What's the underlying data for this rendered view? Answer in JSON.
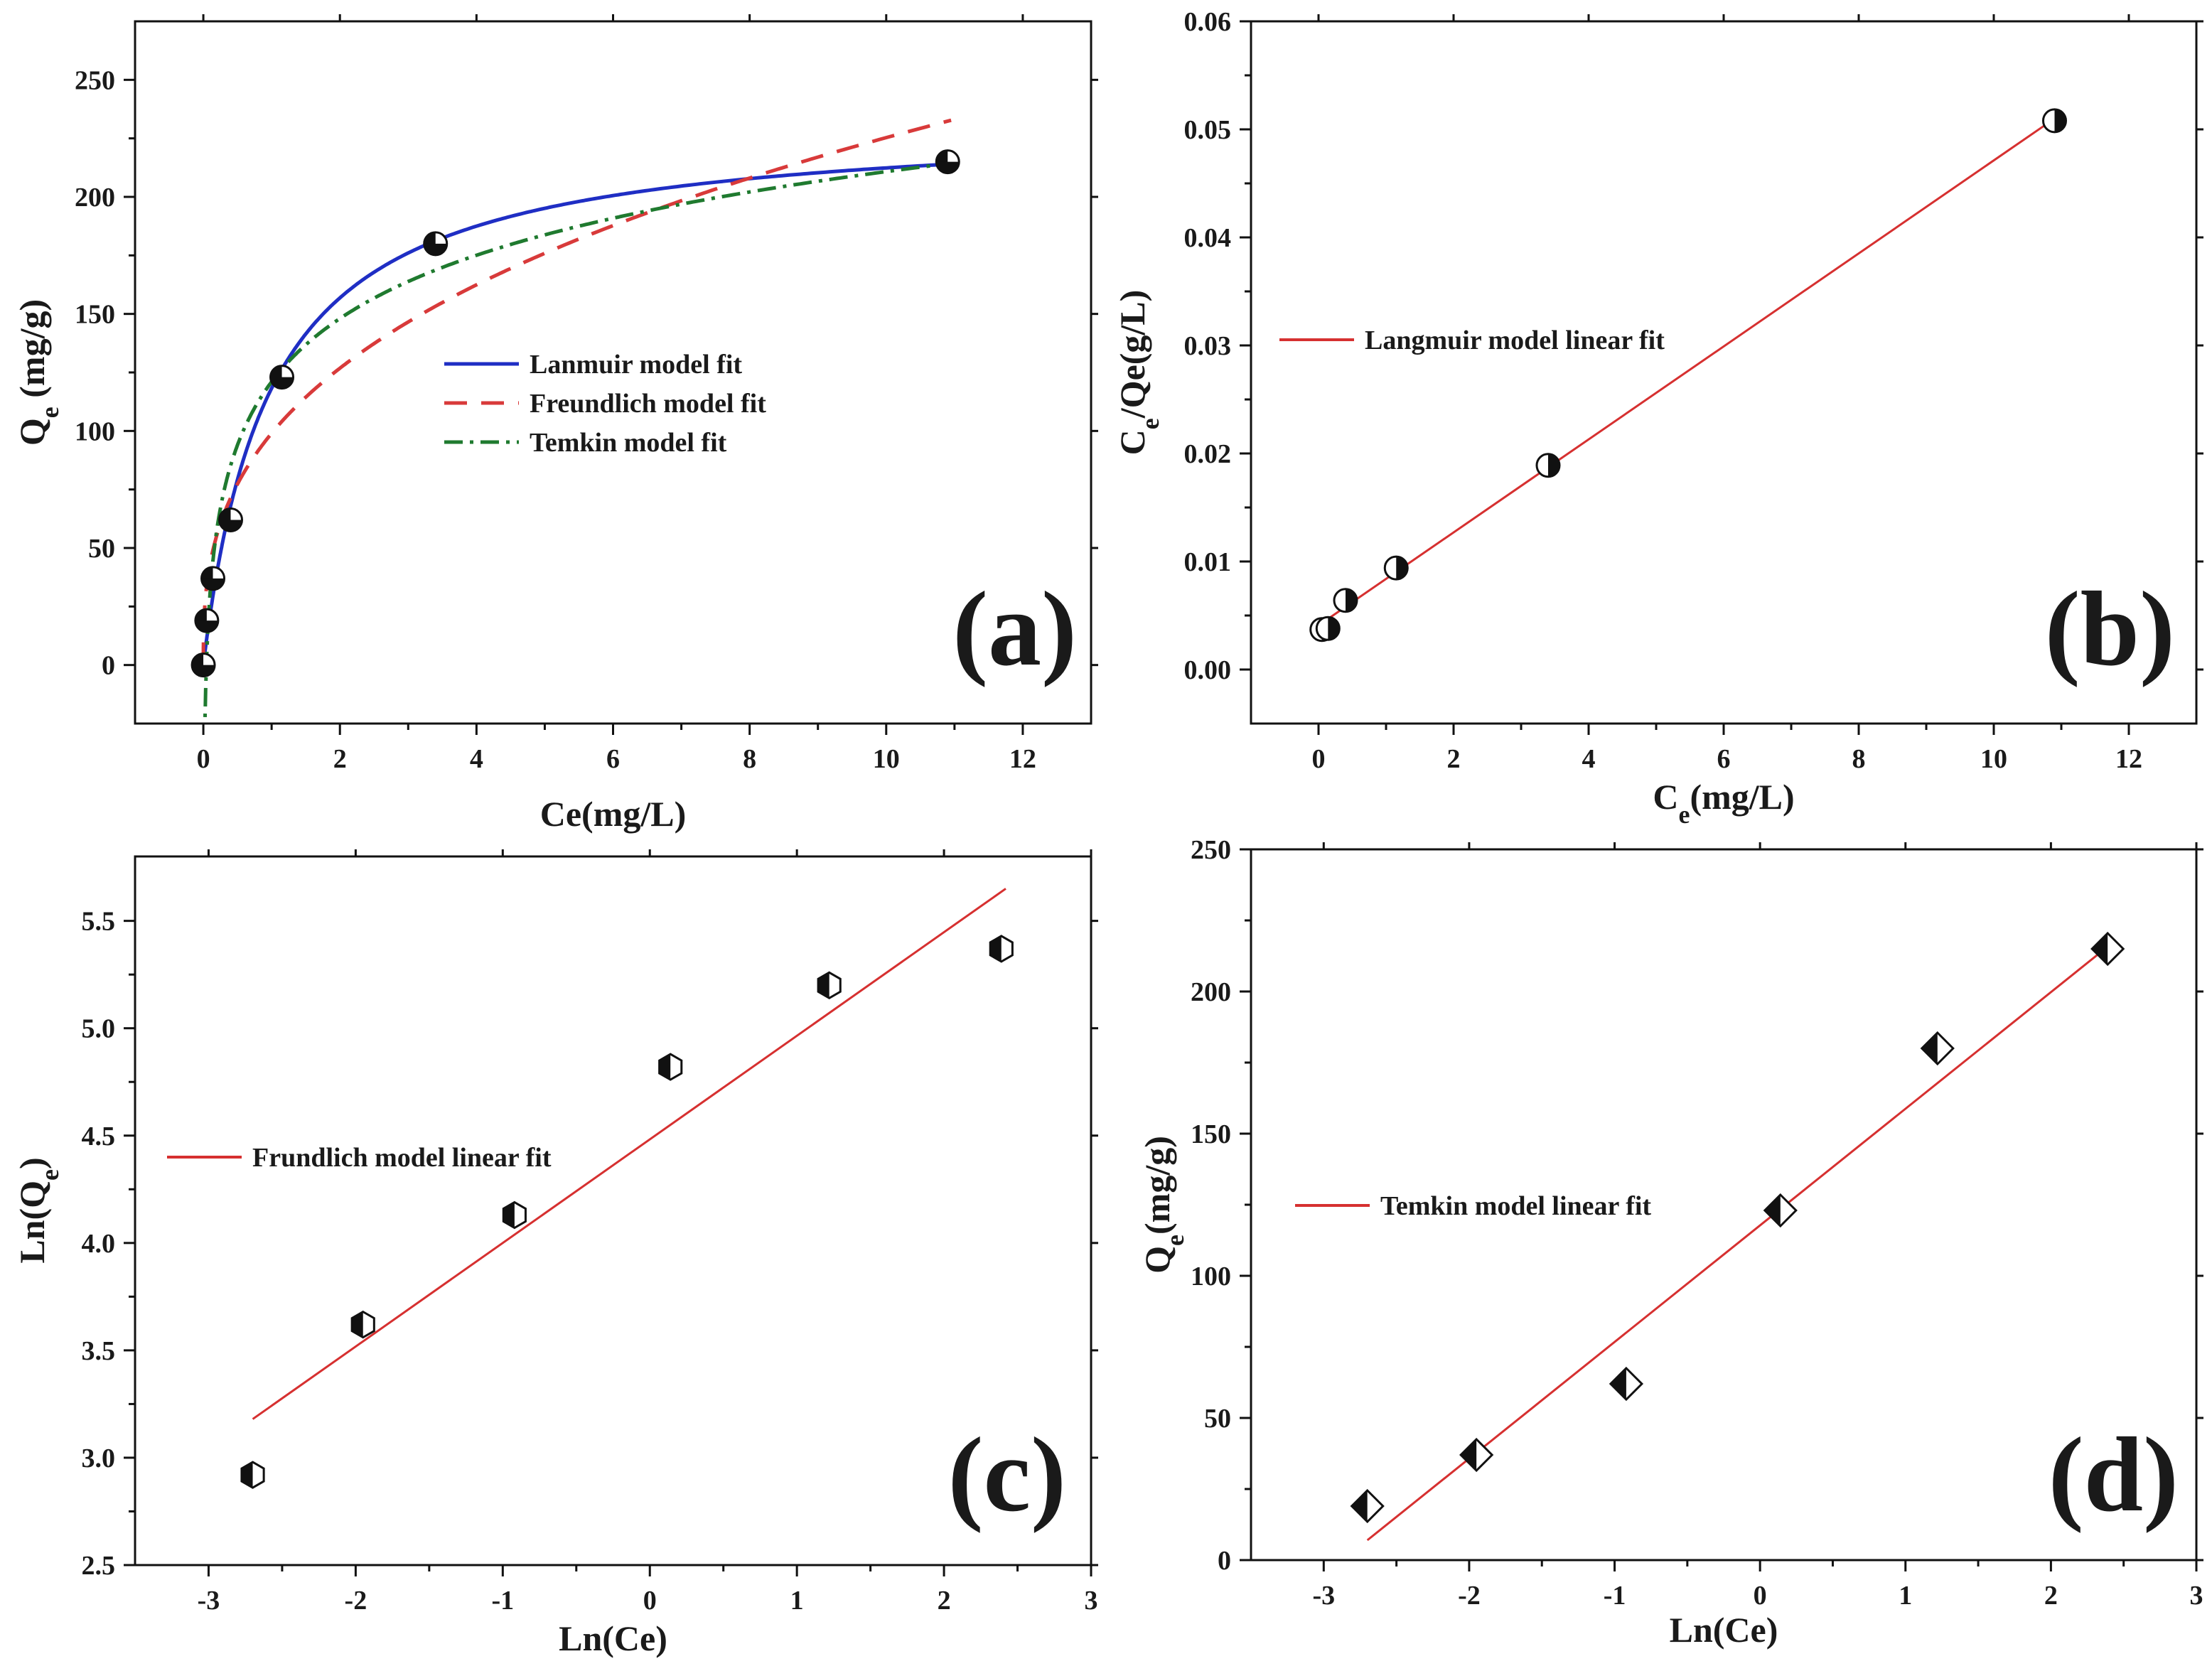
{
  "chart_data": [
    {
      "panel": "a",
      "type": "scatter",
      "panel_label": "(a)",
      "xlabel": "Ce(mg/L)",
      "ylabel_main": "Q",
      "ylabel_sub": "e",
      "ylabel_tail": " (mg/g)",
      "xlim": [
        -1,
        13
      ],
      "ylim": [
        -25,
        275
      ],
      "xticks": [
        "0",
        "2",
        "4",
        "6",
        "8",
        "10",
        "12"
      ],
      "xtick_values": [
        0,
        2,
        4,
        6,
        8,
        10,
        12
      ],
      "yticks": [
        "0",
        "50",
        "100",
        "150",
        "200",
        "250"
      ],
      "ytick_values": [
        0,
        50,
        100,
        150,
        200,
        250
      ],
      "points": {
        "x": [
          0.0,
          0.05,
          0.14,
          0.4,
          1.15,
          3.4,
          10.9
        ],
        "y": [
          0,
          19,
          37,
          62,
          123,
          180,
          215
        ]
      },
      "series": [
        {
          "name": "Lanmuir model fit",
          "model": "langmuir",
          "qmax": 233,
          "kl": 1.03,
          "color": "#1f2ec4",
          "dash": ""
        },
        {
          "name": "Freundlich model fit",
          "model": "freundlich",
          "kf": 99,
          "n": 2.8,
          "color": "#d83a3a",
          "dash": "32,20"
        },
        {
          "name": "Temkin model fit",
          "model": "temkin",
          "a": 121,
          "b": 39,
          "color": "#1f7a2f",
          "dash": "26,10,5,10"
        }
      ],
      "legend_position": "center-right"
    },
    {
      "panel": "b",
      "type": "scatter",
      "panel_label": "(b)",
      "xlabel_main": "C",
      "xlabel_sub": "e",
      "xlabel_tail": "(mg/L)",
      "ylabel_main": "C",
      "ylabel_sub": "e",
      "ylabel_tail": "/Qe(g/L)",
      "xlim": [
        -1,
        13
      ],
      "ylim": [
        -0.005,
        0.06
      ],
      "xticks": [
        "0",
        "2",
        "4",
        "6",
        "8",
        "10",
        "12"
      ],
      "xtick_values": [
        0,
        2,
        4,
        6,
        8,
        10,
        12
      ],
      "yticks": [
        "0.00",
        "0.01",
        "0.02",
        "0.03",
        "0.04",
        "0.05",
        "0.06"
      ],
      "ytick_values": [
        0,
        0.01,
        0.02,
        0.03,
        0.04,
        0.05,
        0.06
      ],
      "points": {
        "x": [
          0.05,
          0.14,
          0.4,
          1.15,
          3.4,
          10.9
        ],
        "y": [
          0.0037,
          0.0038,
          0.0064,
          0.0094,
          0.0189,
          0.0508
        ]
      },
      "series": [
        {
          "name": "Langmuir model linear fit",
          "x": [
            0.05,
            10.9
          ],
          "y": [
            0.0043,
            0.051
          ],
          "color": "#d63030"
        }
      ],
      "legend_position": "upper-left"
    },
    {
      "panel": "c",
      "type": "scatter",
      "panel_label": "(c)",
      "xlabel": "Ln(Ce)",
      "ylabel_main": "Ln(Q",
      "ylabel_sub": "e",
      "ylabel_tail": ")",
      "xlim": [
        -3.5,
        3
      ],
      "ylim": [
        2.5,
        5.8
      ],
      "xticks": [
        "-3",
        "-2",
        "-1",
        "0",
        "1",
        "2",
        "3"
      ],
      "xtick_values": [
        -3,
        -2,
        -1,
        0,
        1,
        2,
        3
      ],
      "yticks": [
        "2.5",
        "3.0",
        "3.5",
        "4.0",
        "4.5",
        "5.0",
        "5.5"
      ],
      "ytick_values": [
        2.5,
        3.0,
        3.5,
        4.0,
        4.5,
        5.0,
        5.5
      ],
      "points": {
        "x": [
          -2.7,
          -1.95,
          -0.92,
          0.14,
          1.22,
          2.39
        ],
        "y": [
          2.92,
          3.62,
          4.13,
          4.82,
          5.2,
          5.37
        ]
      },
      "series": [
        {
          "name": "Frundlich model linear fit",
          "x": [
            -2.7,
            2.42
          ],
          "y": [
            3.18,
            5.65
          ],
          "color": "#d63030"
        }
      ],
      "legend_position": "center-left"
    },
    {
      "panel": "d",
      "type": "scatter",
      "panel_label": "(d)",
      "xlabel": "Ln(Ce)",
      "ylabel_main": "Q",
      "ylabel_sub": "e",
      "ylabel_tail": "(mg/g)",
      "xlim": [
        -3.5,
        3
      ],
      "ylim": [
        0,
        250
      ],
      "xticks": [
        "-3",
        "-2",
        "-1",
        "0",
        "1",
        "2",
        "3"
      ],
      "xtick_values": [
        -3,
        -2,
        -1,
        0,
        1,
        2,
        3
      ],
      "yticks": [
        "0",
        "50",
        "100",
        "150",
        "200",
        "250"
      ],
      "ytick_values": [
        0,
        50,
        100,
        150,
        200,
        250
      ],
      "points": {
        "x": [
          -2.7,
          -1.95,
          -0.92,
          0.14,
          1.22,
          2.39
        ],
        "y": [
          19,
          37,
          62,
          123,
          180,
          215
        ]
      },
      "series": [
        {
          "name": "Temkin model linear fit",
          "x": [
            -2.7,
            2.42
          ],
          "y": [
            7,
            217
          ],
          "color": "#d63030"
        }
      ],
      "legend_position": "center-left"
    }
  ]
}
